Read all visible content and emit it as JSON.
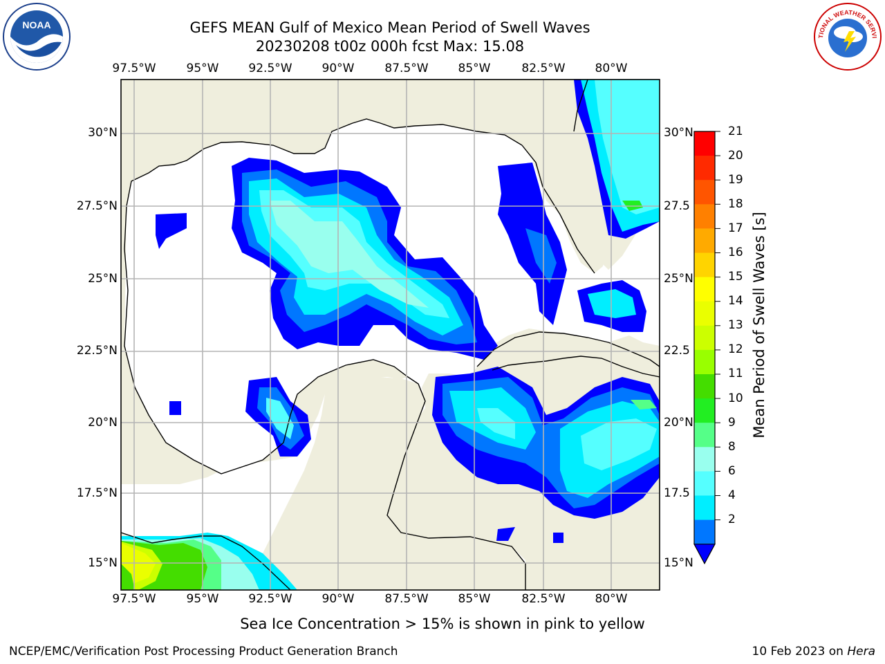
{
  "title": {
    "line1": "GEFS MEAN Gulf of Mexico Mean Period of Swell Waves",
    "line2": "20230208 t00z 000h fcst   Max: 15.08"
  },
  "map": {
    "lon_labels": [
      "97.5°W",
      "95°W",
      "92.5°W",
      "90°W",
      "87.5°W",
      "85°W",
      "82.5°W",
      "80°W"
    ],
    "lat_labels_left": [
      "30°N",
      "27.5°N",
      "25°N",
      "22.5°N",
      "20°N",
      "17.5°N",
      "15°N"
    ],
    "lat_labels_right": [
      "30°N",
      "27.5",
      "25°N",
      "22.5",
      "20°N",
      "17.5",
      "15°N"
    ],
    "land_color": "#efeedd",
    "ocean_color": "#ffffff",
    "grid_color": "#b4b4b4"
  },
  "colorbar": {
    "label": "Mean Period of Swell Waves [s]",
    "ticks": [
      "21",
      "20",
      "19",
      "18",
      "17",
      "16",
      "15",
      "14",
      "13",
      "12",
      "11",
      "10",
      "9",
      "8",
      "6",
      "4",
      "2"
    ],
    "colors": [
      "#ff0000",
      "#ff2a00",
      "#ff5500",
      "#ff8000",
      "#ffaa00",
      "#ffd400",
      "#ffff00",
      "#eaff00",
      "#ccff00",
      "#99ff00",
      "#44dd00",
      "#22ee22",
      "#55ff88",
      "#99ffee",
      "#55ffff",
      "#00eeff",
      "#0077ff",
      "#0000ff"
    ]
  },
  "note": "Sea Ice Concentration > 15% is shown in pink to yellow",
  "footer": {
    "left": "NCEP/EMC/Verification Post Processing Product Generation Branch",
    "right_date": "10 Feb 2023 on ",
    "right_host": "Hera"
  },
  "logos": {
    "noaa": "NOAA",
    "nws": "NATIONAL WEATHER SERVICE"
  }
}
